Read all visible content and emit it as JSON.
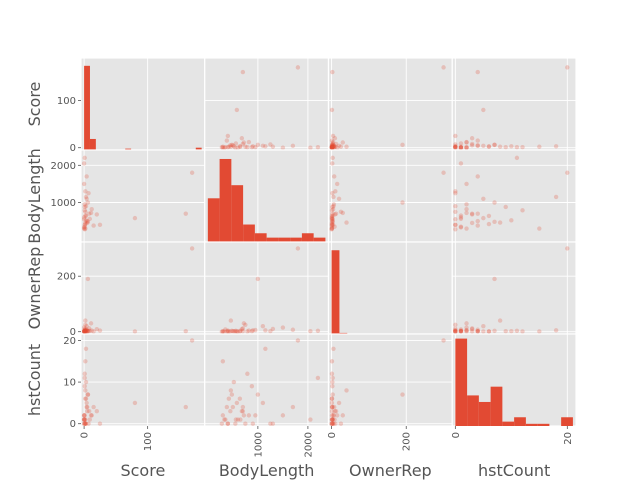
{
  "chart_data": {
    "type": "scatter_matrix",
    "variables": [
      "Score",
      "BodyLength",
      "OwnerRep",
      "hstCount"
    ],
    "ranges": {
      "Score": [
        0,
        185
      ],
      "BodyLength": [
        0,
        2350
      ],
      "OwnerRep": [
        0,
        315
      ],
      "hstCount": [
        0,
        21
      ]
    },
    "yticks": {
      "Score": [
        {
          "v": 0,
          "label": "0"
        },
        {
          "v": 100,
          "label": "100"
        }
      ],
      "BodyLength": [
        {
          "v": 1000,
          "label": "1000"
        },
        {
          "v": 2000,
          "label": "2000"
        }
      ],
      "OwnerRep": [
        {
          "v": 0,
          "label": "0"
        },
        {
          "v": 200,
          "label": "200"
        }
      ],
      "hstCount": [
        {
          "v": 0,
          "label": "0"
        },
        {
          "v": 10,
          "label": "10"
        },
        {
          "v": 20,
          "label": "20"
        }
      ]
    },
    "xticks": {
      "Score": [
        {
          "v": 0,
          "label": "0"
        },
        {
          "v": 100,
          "label": "100"
        }
      ],
      "BodyLength": [
        {
          "v": 1000,
          "label": "1000"
        },
        {
          "v": 2000,
          "label": "2000"
        }
      ],
      "OwnerRep": [
        {
          "v": 0,
          "label": "0"
        },
        {
          "v": 200,
          "label": "200"
        }
      ],
      "hstCount": [
        {
          "v": 0,
          "label": "0"
        },
        {
          "v": 20,
          "label": "20"
        }
      ]
    },
    "histograms": {
      "Score": [
        183,
        24,
        0,
        0,
        0,
        0,
        0,
        3,
        0,
        0,
        0,
        0,
        0,
        0,
        0,
        0,
        0,
        0,
        0,
        5
      ],
      "BodyLength": [
        10,
        19,
        13,
        4,
        2,
        1,
        1,
        1,
        2,
        1
      ],
      "OwnerRep": [
        230,
        3,
        0,
        0,
        0,
        0,
        0,
        0,
        0,
        1,
        0,
        0,
        0,
        1,
        0
      ],
      "hstCount": [
        20,
        7,
        5.5,
        9,
        1,
        2,
        0.5,
        0.5,
        0,
        2
      ]
    },
    "hist_max": {
      "Score": 190,
      "BodyLength": 20,
      "OwnerRep": 240,
      "hstCount": 20
    },
    "points": [
      {
        "Score": 1,
        "BodyLength": 400,
        "OwnerRep": 1,
        "hstCount": 0
      },
      {
        "Score": 2,
        "BodyLength": 650,
        "OwnerRep": 3,
        "hstCount": 1
      },
      {
        "Score": 0,
        "BodyLength": 300,
        "OwnerRep": 1,
        "hstCount": 2
      },
      {
        "Score": 3,
        "BodyLength": 900,
        "OwnerRep": 5,
        "hstCount": 0
      },
      {
        "Score": 5,
        "BodyLength": 500,
        "OwnerRep": 2,
        "hstCount": 4
      },
      {
        "Score": 1,
        "BodyLength": 350,
        "OwnerRep": 8,
        "hstCount": 1
      },
      {
        "Score": 0,
        "BodyLength": 550,
        "OwnerRep": 1,
        "hstCount": 0
      },
      {
        "Score": 8,
        "BodyLength": 700,
        "OwnerRep": 12,
        "hstCount": 3
      },
      {
        "Score": 2,
        "BodyLength": 420,
        "OwnerRep": 1,
        "hstCount": 6
      },
      {
        "Score": 12,
        "BodyLength": 820,
        "OwnerRep": 4,
        "hstCount": 2
      },
      {
        "Score": 1,
        "BodyLength": 280,
        "OwnerRep": 0,
        "hstCount": 0
      },
      {
        "Score": 4,
        "BodyLength": 1100,
        "OwnerRep": 20,
        "hstCount": 5
      },
      {
        "Score": 0,
        "BodyLength": 600,
        "OwnerRep": 1,
        "hstCount": 1
      },
      {
        "Score": 6,
        "BodyLength": 480,
        "OwnerRep": 3,
        "hstCount": 7
      },
      {
        "Score": 2,
        "BodyLength": 750,
        "OwnerRep": 25,
        "hstCount": 0
      },
      {
        "Score": 15,
        "BodyLength": 380,
        "OwnerRep": 1,
        "hstCount": 4
      },
      {
        "Score": 1,
        "BodyLength": 950,
        "OwnerRep": 6,
        "hstCount": 2
      },
      {
        "Score": 3,
        "BodyLength": 520,
        "OwnerRep": 2,
        "hstCount": 10
      },
      {
        "Score": 0,
        "BodyLength": 330,
        "OwnerRep": 1,
        "hstCount": 1
      },
      {
        "Score": 20,
        "BodyLength": 680,
        "OwnerRep": 9,
        "hstCount": 3
      },
      {
        "Score": 7,
        "BodyLength": 1250,
        "OwnerRep": 2,
        "hstCount": 0
      },
      {
        "Score": 2,
        "BodyLength": 460,
        "OwnerRep": 40,
        "hstCount": 8
      },
      {
        "Score": 1,
        "BodyLength": 790,
        "OwnerRep": 1,
        "hstCount": 12
      },
      {
        "Score": 9,
        "BodyLength": 560,
        "OwnerRep": 3,
        "hstCount": 1
      },
      {
        "Score": 0,
        "BodyLength": 1500,
        "OwnerRep": 15,
        "hstCount": 2
      },
      {
        "Score": 3,
        "BodyLength": 640,
        "OwnerRep": 1,
        "hstCount": 6
      },
      {
        "Score": 25,
        "BodyLength": 400,
        "OwnerRep": 4,
        "hstCount": 0
      },
      {
        "Score": 1,
        "BodyLength": 880,
        "OwnerRep": 2,
        "hstCount": 9
      },
      {
        "Score": 4,
        "BodyLength": 1700,
        "OwnerRep": 7,
        "hstCount": 4
      },
      {
        "Score": 2,
        "BodyLength": 300,
        "OwnerRep": 1,
        "hstCount": 15
      },
      {
        "Score": 11,
        "BodyLength": 720,
        "OwnerRep": 30,
        "hstCount": 2
      },
      {
        "Score": 0,
        "BodyLength": 2050,
        "OwnerRep": 2,
        "hstCount": 1
      },
      {
        "Score": 6,
        "BodyLength": 1000,
        "OwnerRep": 190,
        "hstCount": 7
      },
      {
        "Score": 3,
        "BodyLength": 1150,
        "OwnerRep": 5,
        "hstCount": 18
      },
      {
        "Score": 80,
        "BodyLength": 580,
        "OwnerRep": 1,
        "hstCount": 5
      },
      {
        "Score": 1,
        "BodyLength": 2200,
        "OwnerRep": 3,
        "hstCount": 11
      },
      {
        "Score": 160,
        "BodyLength": 700,
        "OwnerRep": 2,
        "hstCount": 4
      },
      {
        "Score": 170,
        "BodyLength": 1800,
        "OwnerRep": 300,
        "hstCount": 20
      },
      {
        "Score": 5,
        "BodyLength": 450,
        "OwnerRep": 1,
        "hstCount": 3
      },
      {
        "Score": 2,
        "BodyLength": 1300,
        "OwnerRep": 10,
        "hstCount": 0
      }
    ],
    "color": "#E24A33",
    "panel_bg": "#E5E5E5",
    "grid": true
  }
}
